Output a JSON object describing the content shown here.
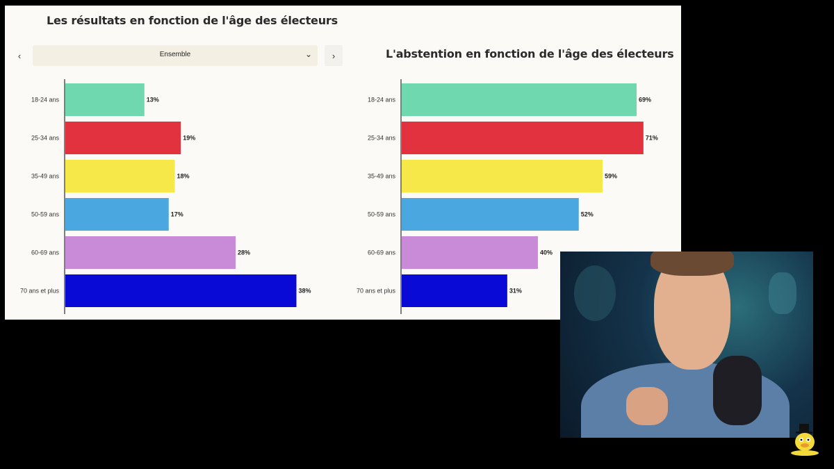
{
  "chart_data": [
    {
      "type": "bar",
      "orientation": "horizontal",
      "title": "Les résultats en fonction de l'âge des électeurs",
      "categories": [
        "18-24 ans",
        "25-34 ans",
        "35-49 ans",
        "50-59 ans",
        "60-69 ans",
        "70 ans et plus"
      ],
      "values": [
        13,
        19,
        18,
        17,
        28,
        38
      ],
      "value_labels": [
        "13%",
        "19%",
        "18%",
        "17%",
        "28%",
        "38%"
      ],
      "unit": "%",
      "xlim": [
        0,
        48
      ],
      "colors": [
        "#6fd8ae",
        "#e2323f",
        "#f7e84a",
        "#4aa7e0",
        "#c98ad7",
        "#0a0ad6"
      ]
    },
    {
      "type": "bar",
      "orientation": "horizontal",
      "title": "L'abstention en fonction de l'âge des électeurs",
      "categories": [
        "18-24 ans",
        "25-34 ans",
        "35-49 ans",
        "50-59 ans",
        "60-69 ans",
        "70 ans et plus"
      ],
      "values": [
        69,
        71,
        59,
        52,
        40,
        31
      ],
      "value_labels": [
        "69%",
        "71%",
        "59%",
        "52%",
        "40%",
        "31%"
      ],
      "unit": "%",
      "xlim": [
        0,
        79
      ],
      "colors": [
        "#6fd8ae",
        "#e2323f",
        "#f7e84a",
        "#4aa7e0",
        "#c98ad7",
        "#0a0ad6"
      ]
    }
  ],
  "filter": {
    "prev_icon": "chevron-left-icon",
    "next_icon": "chevron-right-icon",
    "selected": "Ensemble",
    "dropdown_icon": "chevron-down-icon"
  },
  "webcam": {
    "description_icon": "presenter-video",
    "palette": [
      "#2c6e7a",
      "#14334a",
      "#5b7fa6",
      "#e3b08f"
    ]
  },
  "mascot_icon": "duck-with-top-hat-icon"
}
